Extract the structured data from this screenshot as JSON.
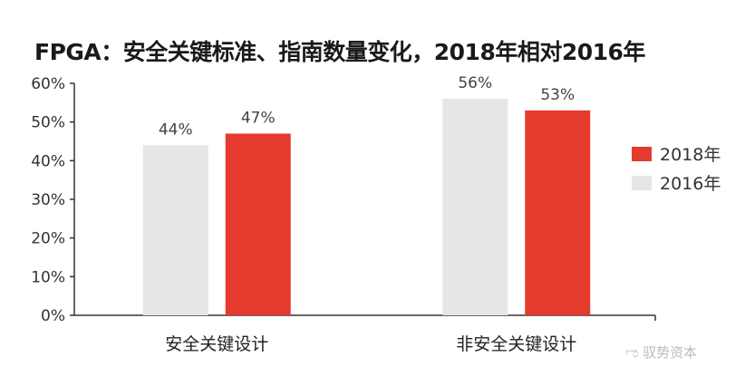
{
  "chart_data": {
    "type": "bar",
    "title": "FPGA：安全关键标准、指南数量变化，2018年相对2016年",
    "categories": [
      "安全关键设计",
      "非安全关键设计"
    ],
    "series": [
      {
        "name": "2016年",
        "values": [
          44,
          56
        ],
        "labels": [
          "44%",
          "56%"
        ],
        "color": "#e6e6e6"
      },
      {
        "name": "2018年",
        "values": [
          47,
          53
        ],
        "labels": [
          "47%",
          "53%"
        ],
        "color": "#e53a2e"
      }
    ],
    "ylim": [
      0,
      60
    ],
    "yticks": [
      "0%",
      "10%",
      "20%",
      "30%",
      "40%",
      "50%",
      "60%"
    ],
    "xlabel": "",
    "ylabel": "",
    "legend": {
      "placement": "right",
      "order": [
        "2018年",
        "2016年"
      ]
    },
    "grid": false
  },
  "watermark": "驭势资本"
}
